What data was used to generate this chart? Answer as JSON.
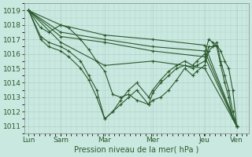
{
  "title": "",
  "xlabel": "Pression niveau de la mer( hPa )",
  "ylabel": "",
  "bg_color": "#c8e8e0",
  "grid_color": "#b0d0c8",
  "line_color": "#2d5a2d",
  "ylim": [
    1010.5,
    1019.5
  ],
  "yticks": [
    1011,
    1012,
    1013,
    1014,
    1015,
    1016,
    1017,
    1018,
    1019
  ],
  "xtick_labels": [
    "Lun",
    "Sam",
    "Mar",
    "Mer",
    "Jeu",
    "Ven"
  ],
  "xtick_positions": [
    0,
    0.8,
    1.9,
    3.1,
    4.4,
    5.2
  ],
  "xlim": [
    -0.1,
    5.5
  ],
  "series": [
    {
      "x": [
        0,
        0.8,
        1.9,
        3.1,
        4.4,
        5.2
      ],
      "y": [
        1019.0,
        1018.0,
        1017.3,
        1017.0,
        1016.6,
        1011.0
      ]
    },
    {
      "x": [
        0,
        0.8,
        1.9,
        3.1,
        4.4,
        5.2
      ],
      "y": [
        1019.0,
        1017.5,
        1017.0,
        1016.5,
        1016.2,
        1011.0
      ]
    },
    {
      "x": [
        0,
        0.8,
        1.9,
        3.1,
        4.4,
        5.2
      ],
      "y": [
        1019.0,
        1017.2,
        1016.8,
        1016.2,
        1015.8,
        1011.0
      ]
    },
    {
      "x": [
        0,
        0.8,
        1.9,
        3.1,
        4.4,
        5.2
      ],
      "y": [
        1019.0,
        1016.8,
        1015.2,
        1015.5,
        1015.0,
        1011.0
      ]
    },
    {
      "x": [
        0,
        0.3,
        0.5,
        0.8,
        1.0,
        1.3,
        1.5,
        1.7,
        1.9,
        2.1,
        2.3,
        2.5,
        2.7,
        3.0,
        3.1,
        3.3,
        3.5,
        3.7,
        3.9,
        4.1,
        4.2,
        4.4,
        4.5,
        4.6,
        4.7,
        4.8,
        4.9,
        5.0,
        5.1,
        5.2
      ],
      "y": [
        1019.0,
        1017.8,
        1017.5,
        1018.0,
        1017.8,
        1017.0,
        1016.3,
        1015.5,
        1014.8,
        1013.2,
        1013.0,
        1013.2,
        1012.8,
        1012.5,
        1012.8,
        1013.0,
        1013.5,
        1014.2,
        1015.0,
        1014.5,
        1014.8,
        1015.2,
        1016.2,
        1016.5,
        1016.6,
        1016.2,
        1015.5,
        1015.0,
        1013.5,
        1011.0
      ]
    },
    {
      "x": [
        0,
        0.3,
        0.5,
        0.8,
        1.0,
        1.3,
        1.5,
        1.7,
        1.9,
        2.1,
        2.3,
        2.5,
        2.7,
        3.0,
        3.1,
        3.3,
        3.5,
        3.7,
        3.9,
        4.1,
        4.2,
        4.4,
        4.5,
        4.6,
        4.7,
        4.8,
        4.9,
        5.0,
        5.1,
        5.2
      ],
      "y": [
        1019.0,
        1017.2,
        1016.8,
        1016.5,
        1016.2,
        1015.5,
        1014.5,
        1013.5,
        1011.5,
        1012.0,
        1012.5,
        1013.0,
        1013.5,
        1012.5,
        1013.3,
        1014.0,
        1014.5,
        1015.0,
        1015.2,
        1015.0,
        1015.2,
        1015.5,
        1016.5,
        1016.5,
        1016.8,
        1015.5,
        1014.5,
        1013.5,
        1012.0,
        1011.0
      ]
    },
    {
      "x": [
        0,
        0.3,
        0.5,
        0.8,
        1.0,
        1.3,
        1.5,
        1.7,
        1.9,
        2.1,
        2.3,
        2.5,
        2.7,
        3.0,
        3.1,
        3.3,
        3.5,
        3.7,
        3.9,
        4.1,
        4.2,
        4.4,
        4.5,
        4.6,
        4.7,
        4.8,
        4.9,
        5.0,
        5.1,
        5.2
      ],
      "y": [
        1019.0,
        1017.0,
        1016.5,
        1016.2,
        1015.8,
        1015.0,
        1014.2,
        1013.0,
        1011.5,
        1012.0,
        1012.8,
        1013.5,
        1014.0,
        1013.0,
        1013.5,
        1014.2,
        1014.8,
        1015.2,
        1015.5,
        1015.2,
        1015.5,
        1016.0,
        1017.0,
        1016.8,
        1016.5,
        1015.2,
        1014.0,
        1013.0,
        1011.5,
        1011.0
      ]
    }
  ]
}
